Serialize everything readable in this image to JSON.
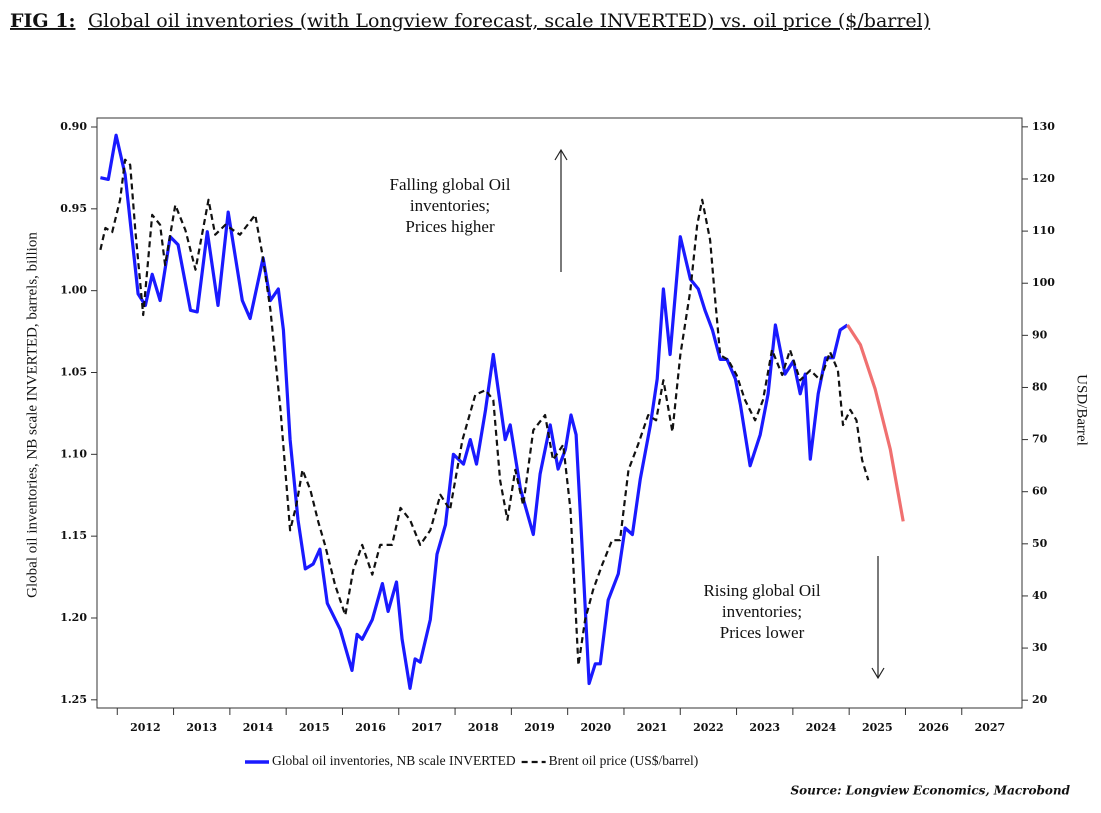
{
  "chart_data": {
    "type": "line",
    "title_label": "FIG 1:",
    "title": "Global oil inventories (with Longview forecast, scale INVERTED) vs. oil price ($/barrel)",
    "ylabel": "Global oil inventories, NB scale INVERTED, barrels, billion",
    "y2label": "USD/Barrel",
    "source": "Source: Longview Economics, Macrobond",
    "annotations": [
      {
        "lines": [
          "Falling global Oil",
          "inventories;",
          "Prices higher"
        ]
      },
      {
        "lines": [
          "Rising global Oil",
          "inventories;",
          "Prices lower"
        ]
      }
    ],
    "xlim": [
      2011.64,
      2028.07
    ],
    "xticks": [
      2012,
      2013,
      2014,
      2015,
      2016,
      2017,
      2018,
      2019,
      2020,
      2021,
      2022,
      2023,
      2024,
      2025,
      2026,
      2027
    ],
    "ylim": [
      1.255,
      0.8945
    ],
    "y_inverted": true,
    "yticks": [
      {
        "value": 0.9,
        "label": "0.90"
      },
      0.95,
      {
        "value": 1.0,
        "label": "1.00"
      },
      1.05,
      {
        "value": 1.1,
        "label": "1.10"
      },
      1.15,
      {
        "value": 1.2,
        "label": "1.20"
      },
      1.25
    ],
    "y2lim": [
      18.5,
      131.7
    ],
    "y2ticks": [
      20,
      30,
      40,
      50,
      60,
      70,
      80,
      90,
      100,
      110,
      120,
      130
    ],
    "grid": false,
    "legend": "bottom",
    "series": [
      {
        "name": "Global oil inventories, NB scale INVERTED",
        "color": "#1a1aff",
        "dash": false,
        "axis": "y",
        "x": [
          2011.7,
          2011.84,
          2011.98,
          2012.14,
          2012.37,
          2012.5,
          2012.62,
          2012.76,
          2012.94,
          2013.08,
          2013.3,
          2013.42,
          2013.6,
          2013.79,
          2013.97,
          2014.22,
          2014.36,
          2014.59,
          2014.72,
          2014.86,
          2014.95,
          2015.07,
          2015.21,
          2015.34,
          2015.48,
          2015.6,
          2015.73,
          2015.96,
          2016.17,
          2016.26,
          2016.35,
          2016.53,
          2016.71,
          2016.81,
          2016.96,
          2017.06,
          2017.2,
          2017.29,
          2017.38,
          2017.56,
          2017.68,
          2017.83,
          2017.97,
          2018.15,
          2018.27,
          2018.38,
          2018.54,
          2018.68,
          2018.89,
          2018.98,
          2019.16,
          2019.39,
          2019.51,
          2019.69,
          2019.83,
          2019.96,
          2020.06,
          2020.15,
          2020.24,
          2020.38,
          2020.49,
          2020.58,
          2020.72,
          2020.9,
          2021.02,
          2021.15,
          2021.29,
          2021.47,
          2021.59,
          2021.7,
          2021.82,
          2022.0,
          2022.18,
          2022.32,
          2022.44,
          2022.57,
          2022.71,
          2022.83,
          2022.98,
          2023.07,
          2023.24,
          2023.42,
          2023.56,
          2023.69,
          2023.86,
          2024.01,
          2024.13,
          2024.22,
          2024.31,
          2024.45,
          2024.58,
          2024.72,
          2024.84,
          2024.97
        ],
        "values": [
          0.931,
          0.932,
          0.905,
          0.929,
          1.002,
          1.009,
          0.99,
          1.006,
          0.967,
          0.972,
          1.012,
          1.013,
          0.964,
          1.009,
          0.952,
          1.006,
          1.017,
          0.98,
          1.006,
          0.999,
          1.024,
          1.091,
          1.14,
          1.17,
          1.167,
          1.158,
          1.191,
          1.207,
          1.232,
          1.21,
          1.213,
          1.201,
          1.179,
          1.196,
          1.178,
          1.213,
          1.243,
          1.225,
          1.227,
          1.201,
          1.161,
          1.143,
          1.1,
          1.106,
          1.091,
          1.106,
          1.073,
          1.039,
          1.091,
          1.082,
          1.121,
          1.149,
          1.112,
          1.082,
          1.109,
          1.097,
          1.076,
          1.088,
          1.146,
          1.24,
          1.228,
          1.228,
          1.189,
          1.173,
          1.145,
          1.149,
          1.115,
          1.082,
          1.054,
          0.999,
          1.039,
          0.967,
          0.993,
          0.999,
          1.012,
          1.024,
          1.042,
          1.042,
          1.054,
          1.07,
          1.107,
          1.088,
          1.063,
          1.021,
          1.051,
          1.043,
          1.063,
          1.051,
          1.103,
          1.063,
          1.041,
          1.041,
          1.024,
          1.021
        ]
      },
      {
        "color": "#f07070",
        "dash": false,
        "axis": "y",
        "x": [
          2024.97,
          2025.2,
          2025.46,
          2025.73,
          2025.96
        ],
        "values": [
          1.021,
          1.033,
          1.06,
          1.097,
          1.141
        ]
      },
      {
        "name": "Brent oil price (US$/barrel)",
        "color": "#111111",
        "dash": true,
        "axis": "y2",
        "x": [
          2011.7,
          2011.79,
          2011.91,
          2012.05,
          2012.14,
          2012.23,
          2012.32,
          2012.46,
          2012.62,
          2012.76,
          2012.85,
          2013.03,
          2013.21,
          2013.39,
          2013.62,
          2013.74,
          2013.92,
          2014.18,
          2014.45,
          2014.58,
          2014.72,
          2014.9,
          2015.07,
          2015.18,
          2015.29,
          2015.43,
          2015.57,
          2015.69,
          2015.87,
          2016.05,
          2016.19,
          2016.35,
          2016.53,
          2016.67,
          2016.88,
          2017.03,
          2017.2,
          2017.38,
          2017.56,
          2017.74,
          2017.91,
          2018.13,
          2018.36,
          2018.54,
          2018.68,
          2018.8,
          2018.93,
          2019.07,
          2019.21,
          2019.39,
          2019.6,
          2019.74,
          2019.92,
          2020.05,
          2020.19,
          2020.31,
          2020.45,
          2020.61,
          2020.79,
          2020.93,
          2021.08,
          2021.25,
          2021.43,
          2021.57,
          2021.7,
          2021.86,
          2022.0,
          2022.18,
          2022.3,
          2022.39,
          2022.53,
          2022.62,
          2022.71,
          2022.85,
          2023.0,
          2023.15,
          2023.33,
          2023.47,
          2023.63,
          2023.81,
          2023.95,
          2024.13,
          2024.31,
          2024.49,
          2024.66,
          2024.8,
          2024.89,
          2025.02,
          2025.13,
          2025.23,
          2025.34
        ],
        "values": [
          106.4,
          110.6,
          109.8,
          116.0,
          123.7,
          122.7,
          110.2,
          93.9,
          113.1,
          111.2,
          103.5,
          115.0,
          110.2,
          102.6,
          116.0,
          109.3,
          111.2,
          109.3,
          113.1,
          105.4,
          94.9,
          75.7,
          52.6,
          57.4,
          64.2,
          60.3,
          54.2,
          49.8,
          42.1,
          36.3,
          44.9,
          49.8,
          44.1,
          49.8,
          49.8,
          56.9,
          54.6,
          49.8,
          52.6,
          59.4,
          56.5,
          69.9,
          78.6,
          79.5,
          77.6,
          62.2,
          54.6,
          64.2,
          57.4,
          71.8,
          74.7,
          66.1,
          69.0,
          56.5,
          26.7,
          35.4,
          41.1,
          45.9,
          50.7,
          50.7,
          64.2,
          69.0,
          74.7,
          73.7,
          81.4,
          71.5,
          86.2,
          98.7,
          111.2,
          116.0,
          108.3,
          96.8,
          86.2,
          85.3,
          82.4,
          77.6,
          73.7,
          77.6,
          87.2,
          82.4,
          87.2,
          81.4,
          83.3,
          81.4,
          86.8,
          83.3,
          72.8,
          75.7,
          73.7,
          66.1,
          62.2
        ]
      }
    ]
  }
}
